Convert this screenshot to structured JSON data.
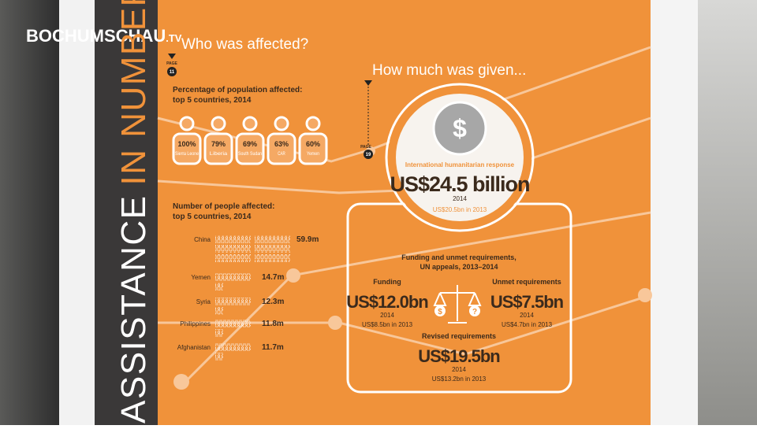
{
  "watermark": {
    "name": "BOCHUMSCHAU",
    "suffix": ".TV"
  },
  "sidebar": {
    "line1": "ASSISTANCE",
    "line2": "IN NUMBERS"
  },
  "affected": {
    "title": "Who was affected?",
    "page_label": "PAGE",
    "page": "11",
    "percentage": {
      "heading": "Percentage of population affected:",
      "subheading": "top 5 countries, 2014",
      "items": [
        {
          "value": "100%",
          "country": "Sierra Leone"
        },
        {
          "value": "79%",
          "country": "Liberia"
        },
        {
          "value": "69%",
          "country": "South Sudan"
        },
        {
          "value": "63%",
          "country": "CAR"
        },
        {
          "value": "60%",
          "country": "Yemen"
        }
      ]
    },
    "people": {
      "heading": "Number of people affected:",
      "subheading": "top 5 countries, 2014",
      "items": [
        {
          "country": "China",
          "value": "59.9m"
        },
        {
          "country": "Yemen",
          "value": "14.7m"
        },
        {
          "country": "Syria",
          "value": "12.3m"
        },
        {
          "country": "Philippines",
          "value": "11.8m"
        },
        {
          "country": "Afghanistan",
          "value": "11.7m"
        }
      ]
    }
  },
  "given": {
    "title": "How much was given...",
    "page_label": "PAGE",
    "page": "19",
    "response": {
      "label": "International humanitarian response",
      "amount": "US$24.5 billion",
      "year": "2014",
      "previous": "US$20.5bn in 2013"
    },
    "appeals": {
      "heading": "Funding and unmet requirements,",
      "subheading": "UN appeals, 2013–2014",
      "funding": {
        "label": "Funding",
        "amount": "US$12.0bn",
        "year": "2014",
        "previous": "US$8.5bn in 2013"
      },
      "unmet": {
        "label": "Unmet requirements",
        "amount": "US$7.5bn",
        "year": "2014",
        "previous": "US$4.7bn in 2013"
      },
      "revised": {
        "label": "Revised requirements",
        "amount": "US$19.5bn",
        "year": "2014",
        "previous": "US$13.2bn in 2013"
      }
    }
  }
}
